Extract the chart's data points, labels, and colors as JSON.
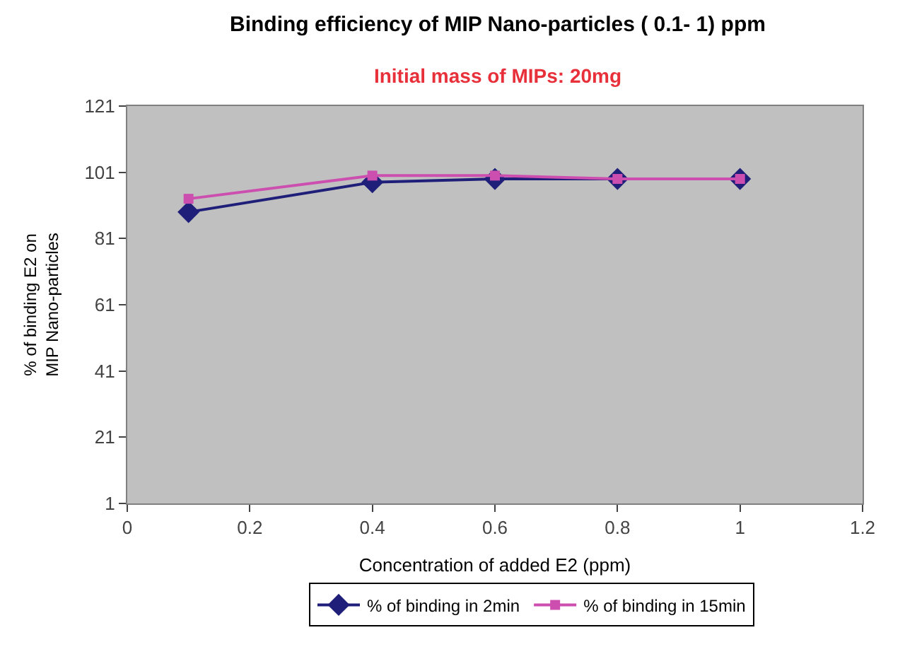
{
  "chart_data": {
    "type": "line",
    "title": "Binding efficiency of MIP Nano-particles ( 0.1- 1) ppm",
    "subtitle": "Initial mass of MIPs: 20mg",
    "xlabel": "Concentration of added E2 (ppm)",
    "ylabel": "% of binding E2 on\nMIP Nano-particles",
    "x": [
      0.1,
      0.4,
      0.6,
      0.8,
      1
    ],
    "series": [
      {
        "name": "% of binding in 2min",
        "color": "#1f1f7a",
        "marker": "diamond",
        "values": [
          89,
          98,
          99,
          99,
          99
        ]
      },
      {
        "name": "% of binding in 15min",
        "color": "#cc4fb0",
        "marker": "square",
        "values": [
          93,
          100,
          100,
          99,
          99
        ]
      }
    ],
    "xlim": [
      0,
      1.2
    ],
    "xticks": [
      0,
      0.2,
      0.4,
      0.6,
      0.8,
      1,
      1.2
    ],
    "ylim": [
      1,
      121
    ],
    "yticks": [
      1,
      21,
      41,
      61,
      81,
      101,
      121
    ],
    "grid": false,
    "legend": "bottom",
    "line_style": "solid"
  }
}
